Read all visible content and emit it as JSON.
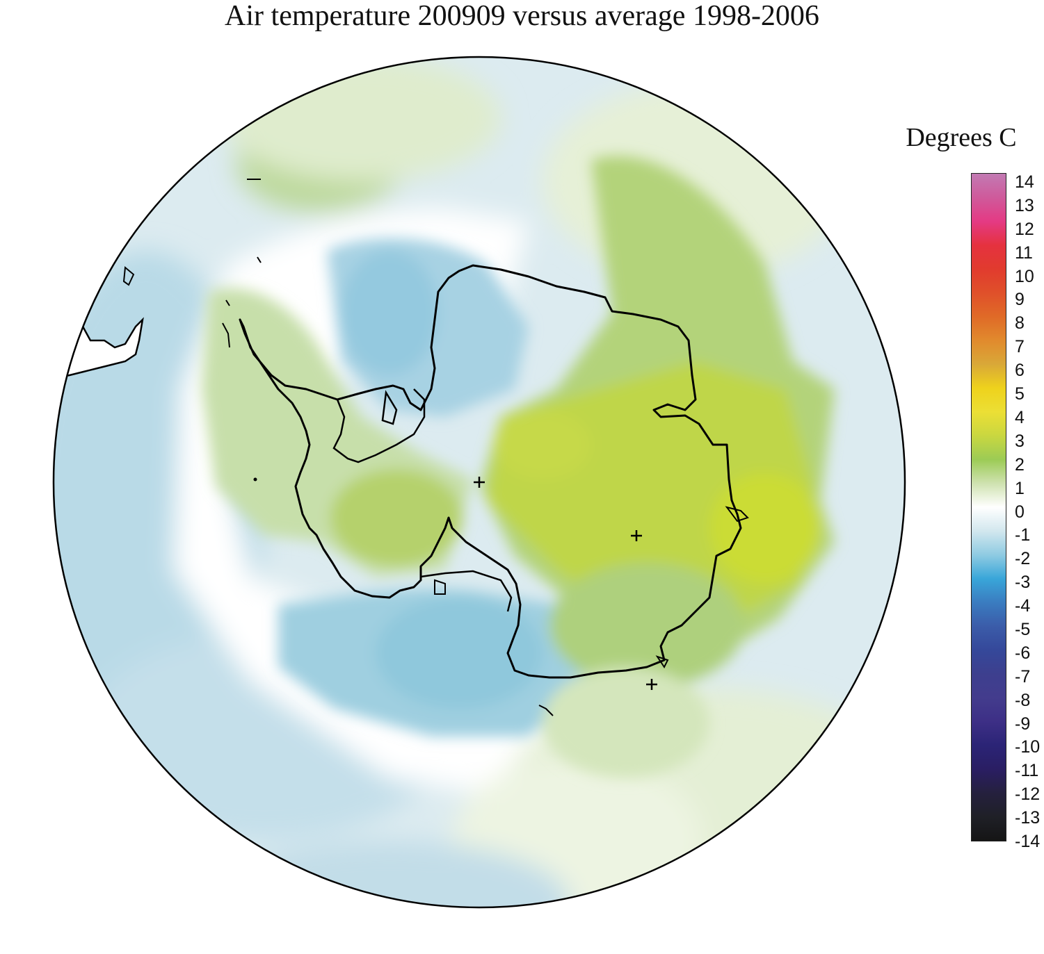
{
  "title": "Air temperature 200909 versus average 1998-2006",
  "legend": {
    "title": "Degrees C",
    "ticks": [
      "14",
      "13",
      "12",
      "11",
      "10",
      "9",
      "8",
      "7",
      "6",
      "5",
      "4",
      "3",
      "2",
      "1",
      "0",
      "-1",
      "-2",
      "-3",
      "-4",
      "-5",
      "-6",
      "-7",
      "-8",
      "-9",
      "-10",
      "-11",
      "-12",
      "-13",
      "-14"
    ],
    "colors": {
      "14": "#c27ab3",
      "13": "#cf5a9b",
      "12": "#e43a84",
      "11": "#e5323f",
      "10": "#e13b2e",
      "9": "#e0502a",
      "8": "#e06a27",
      "7": "#e18a2d",
      "6": "#d9a838",
      "5": "#eed21c",
      "4": "#ecdf35",
      "3": "#c9d740",
      "2": "#9ccb55",
      "1": "#cfe2b0",
      "0": "#ffffff",
      "-1": "#d2e7ee",
      "-2": "#8fcbe2",
      "-3": "#39a6d9",
      "-4": "#3a7cc0",
      "-5": "#3b5ca9",
      "-6": "#35489a",
      "-7": "#3d3f8e",
      "-8": "#433c8d",
      "-9": "#3d2f86",
      "-10": "#2b2476",
      "-11": "#2a1e63",
      "-12": "#25203e",
      "-13": "#1f2027",
      "-14": "#151515"
    }
  },
  "map": {
    "projection": "south polar stereographic",
    "anomaly_regions": [
      {
        "name": "east-antarctica-warm",
        "value": 3
      },
      {
        "name": "antarctic-peninsula-warm",
        "value": 1.5
      },
      {
        "name": "weddell-sea-cold",
        "value": -2
      },
      {
        "name": "ross-sea-cold",
        "value": -2
      },
      {
        "name": "south-pacific-cold",
        "value": -1.5
      },
      {
        "name": "south-atlantic-warm",
        "value": 1
      }
    ]
  }
}
